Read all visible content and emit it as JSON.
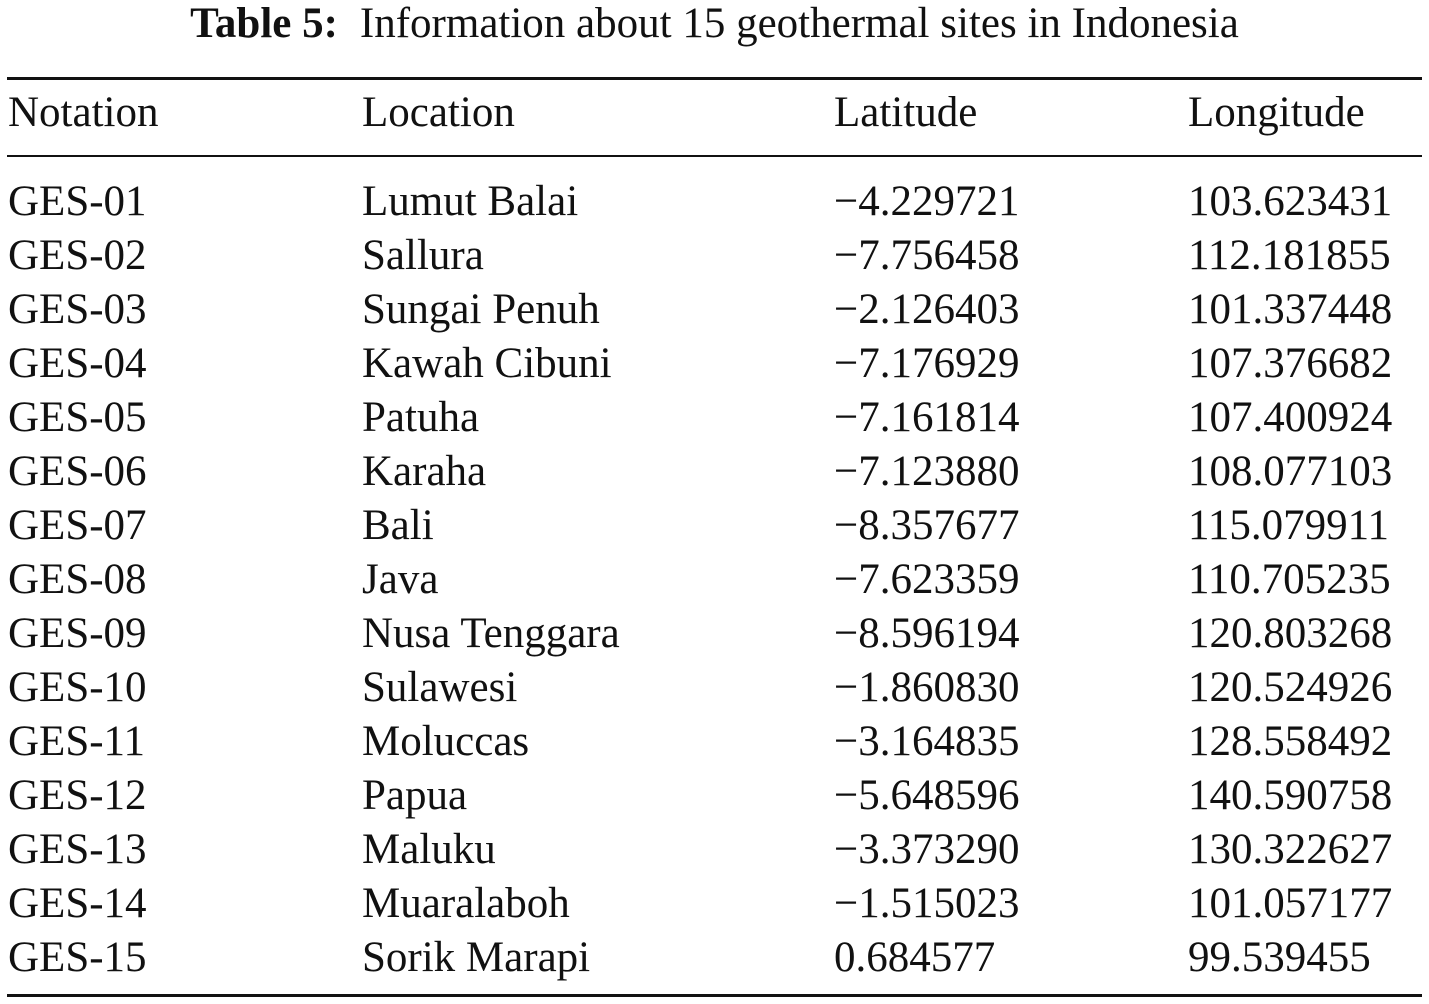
{
  "caption": {
    "label": "Table 5:",
    "text": "Information about 15 geothermal sites in Indonesia"
  },
  "table": {
    "headers": {
      "notation": "Notation",
      "location": "Location",
      "latitude": "Latitude",
      "longitude": "Longitude"
    },
    "rows": [
      {
        "notation": "GES-01",
        "location": "Lumut Balai",
        "latitude": "−4.229721",
        "longitude": "103.623431"
      },
      {
        "notation": "GES-02",
        "location": "Sallura",
        "latitude": "−7.756458",
        "longitude": "112.181855"
      },
      {
        "notation": "GES-03",
        "location": "Sungai Penuh",
        "latitude": "−2.126403",
        "longitude": "101.337448"
      },
      {
        "notation": "GES-04",
        "location": "Kawah Cibuni",
        "latitude": "−7.176929",
        "longitude": "107.376682"
      },
      {
        "notation": "GES-05",
        "location": "Patuha",
        "latitude": "−7.161814",
        "longitude": "107.400924"
      },
      {
        "notation": "GES-06",
        "location": "Karaha",
        "latitude": "−7.123880",
        "longitude": "108.077103"
      },
      {
        "notation": "GES-07",
        "location": "Bali",
        "latitude": "−8.357677",
        "longitude": "115.079911"
      },
      {
        "notation": "GES-08",
        "location": "Java",
        "latitude": "−7.623359",
        "longitude": "110.705235"
      },
      {
        "notation": "GES-09",
        "location": "Nusa Tenggara",
        "latitude": "−8.596194",
        "longitude": "120.803268"
      },
      {
        "notation": "GES-10",
        "location": "Sulawesi",
        "latitude": "−1.860830",
        "longitude": "120.524926"
      },
      {
        "notation": "GES-11",
        "location": "Moluccas",
        "latitude": "−3.164835",
        "longitude": "128.558492"
      },
      {
        "notation": "GES-12",
        "location": "Papua",
        "latitude": "−5.648596",
        "longitude": "140.590758"
      },
      {
        "notation": "GES-13",
        "location": "Maluku",
        "latitude": "−3.373290",
        "longitude": "130.322627"
      },
      {
        "notation": "GES-14",
        "location": "Muaralaboh",
        "latitude": "−1.515023",
        "longitude": "101.057177"
      },
      {
        "notation": "GES-15",
        "location": "Sorik Marapi",
        "latitude": "0.684577",
        "longitude": "99.539455"
      }
    ]
  }
}
